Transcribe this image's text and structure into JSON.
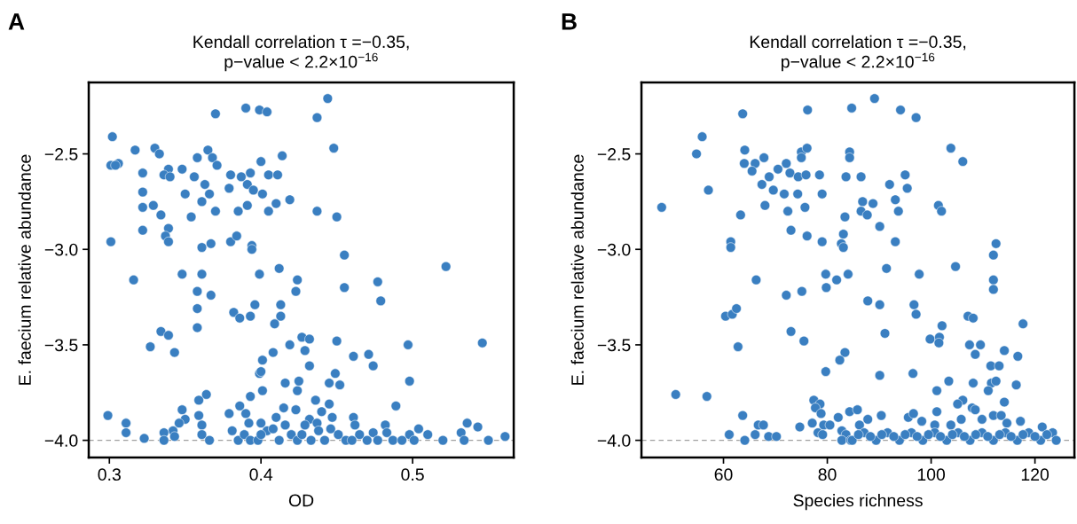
{
  "chart_data": [
    {
      "type": "scatter",
      "title": "Kendall correlation τ =−0.35,\np−value < 2.2×10$^{−16}$",
      "xlabel": "OD",
      "ylabel": "E. faecium relative abundance",
      "annotations": [
        "A"
      ],
      "marker": "circle",
      "grid": false,
      "legend": false,
      "xlim": [
        0.2864,
        0.5667
      ],
      "xticks": [
        0.3,
        0.4,
        0.5
      ],
      "ylim": [
        -4.09,
        -2.126
      ],
      "yticks": [
        {
          "value": -4.0,
          "label": "−4.0"
        },
        {
          "value": -3.5,
          "label": "−3.5"
        },
        {
          "value": -3.0,
          "label": "−3.0"
        },
        {
          "value": -2.5,
          "label": "−2.5"
        }
      ],
      "ref_lines": [
        {
          "axis": "y",
          "value": -4.0,
          "label": null,
          "color": "#a0a0a0",
          "line_style": "dashed"
        }
      ],
      "series": [
        {
          "color": "#3a7fc1",
          "x": [
            0.302,
            0.301,
            0.306,
            0.304,
            0.317,
            0.33,
            0.333,
            0.322,
            0.322,
            0.322,
            0.329,
            0.334,
            0.322,
            0.301,
            0.339,
            0.337,
            0.339,
            0.339,
            0.336,
            0.34,
            0.348,
            0.356,
            0.358,
            0.365,
            0.368,
            0.371,
            0.37,
            0.39,
            0.399,
            0.404,
            0.35,
            0.363,
            0.366,
            0.361,
            0.354,
            0.37,
            0.361,
            0.367,
            0.379,
            0.38,
            0.387,
            0.393,
            0.391,
            0.395,
            0.385,
            0.391,
            0.4,
            0.401,
            0.405,
            0.411,
            0.414,
            0.405,
            0.41,
            0.419,
            0.38,
            0.384,
            0.394,
            0.394,
            0.316,
            0.348,
            0.361,
            0.358,
            0.367,
            0.358,
            0.358,
            0.334,
            0.339,
            0.327,
            0.343,
            0.399,
            0.412,
            0.424,
            0.423,
            0.396,
            0.382,
            0.386,
            0.393,
            0.413,
            0.413,
            0.409,
            0.401,
            0.408,
            0.419,
            0.399,
            0.4,
            0.416,
            0.401,
            0.424,
            0.425,
            0.393,
            0.386,
            0.379,
            0.364,
            0.359,
            0.359,
            0.348,
            0.35,
            0.346,
            0.342,
            0.336,
            0.336,
            0.343,
            0.323,
            0.311,
            0.311,
            0.299,
            0.361,
            0.361,
            0.366,
            0.381,
            0.39,
            0.392,
            0.385,
            0.389,
            0.393,
            0.398,
            0.4,
            0.404,
            0.41,
            0.412,
            0.416,
            0.42,
            0.424,
            0.415,
            0.423,
            0.408,
            0.4,
            0.444,
            0.437,
            0.448,
            0.437,
            0.45,
            0.455,
            0.522,
            0.455,
            0.477,
            0.479,
            0.427,
            0.432,
            0.45,
            0.497,
            0.546,
            0.429,
            0.461,
            0.471,
            0.474,
            0.432,
            0.449,
            0.445,
            0.452,
            0.498,
            0.436,
            0.445,
            0.44,
            0.447,
            0.461,
            0.489,
            0.432,
            0.437,
            0.482,
            0.536,
            0.543,
            0.532,
            0.504,
            0.51,
            0.52,
            0.534,
            0.55,
            0.561,
            0.427,
            0.433,
            0.438,
            0.442,
            0.446,
            0.451,
            0.456,
            0.462,
            0.465,
            0.47,
            0.474,
            0.477,
            0.483,
            0.487,
            0.493,
            0.498,
            0.501,
            0.429,
            0.46
          ],
          "values": [
            -2.41,
            -2.56,
            -2.55,
            -2.56,
            -2.48,
            -2.47,
            -2.5,
            -2.6,
            -2.7,
            -2.78,
            -2.77,
            -2.82,
            -2.9,
            -2.96,
            -2.89,
            -2.93,
            -2.96,
            -2.58,
            -2.61,
            -2.62,
            -2.58,
            -2.62,
            -2.52,
            -2.48,
            -2.52,
            -2.56,
            -2.29,
            -2.26,
            -2.27,
            -2.28,
            -2.71,
            -2.66,
            -2.71,
            -2.75,
            -2.83,
            -2.8,
            -2.99,
            -2.97,
            -2.68,
            -2.61,
            -2.62,
            -2.6,
            -2.66,
            -2.69,
            -2.8,
            -2.77,
            -2.54,
            -2.71,
            -2.61,
            -2.61,
            -2.51,
            -2.8,
            -2.76,
            -2.74,
            -2.96,
            -2.93,
            -2.98,
            -3.0,
            -3.16,
            -3.13,
            -3.13,
            -3.22,
            -3.24,
            -3.31,
            -3.41,
            -3.43,
            -3.45,
            -3.51,
            -3.54,
            -3.13,
            -3.1,
            -3.16,
            -3.22,
            -3.29,
            -3.33,
            -3.36,
            -3.35,
            -3.29,
            -3.35,
            -3.39,
            -3.58,
            -3.54,
            -3.5,
            -3.65,
            -3.64,
            -3.7,
            -3.74,
            -3.74,
            -3.69,
            -3.77,
            -3.82,
            -3.86,
            -3.76,
            -3.79,
            -3.87,
            -3.84,
            -3.89,
            -3.91,
            -3.95,
            -3.96,
            -4.0,
            -3.98,
            -3.99,
            -3.91,
            -3.96,
            -3.87,
            -3.92,
            -3.97,
            -4.0,
            -3.95,
            -3.86,
            -3.91,
            -4.0,
            -3.97,
            -4.0,
            -4.0,
            -3.91,
            -3.95,
            -3.88,
            -4.0,
            -3.92,
            -3.97,
            -4.0,
            -3.83,
            -3.84,
            -3.94,
            -3.97,
            -2.21,
            -2.31,
            -2.47,
            -2.8,
            -2.83,
            -3.03,
            -3.09,
            -3.2,
            -3.17,
            -3.27,
            -3.46,
            -3.47,
            -3.48,
            -3.5,
            -3.49,
            -3.53,
            -3.56,
            -3.55,
            -3.61,
            -3.61,
            -3.65,
            -3.7,
            -3.71,
            -3.69,
            -3.79,
            -3.81,
            -3.85,
            -3.88,
            -3.88,
            -3.82,
            -3.89,
            -3.91,
            -3.92,
            -3.91,
            -3.93,
            -3.96,
            -3.94,
            -3.97,
            -4.0,
            -4.0,
            -4.0,
            -3.98,
            -3.97,
            -4.0,
            -3.95,
            -4.0,
            -3.94,
            -3.97,
            -4.0,
            -3.92,
            -3.97,
            -4.0,
            -3.96,
            -4.0,
            -3.96,
            -4.0,
            -4.0,
            -3.97,
            -4.0,
            -3.92,
            -4.0
          ]
        }
      ]
    },
    {
      "type": "scatter",
      "title": "Kendall correlation τ =−0.35,\np−value < 2.2×10$^{−16}$",
      "xlabel": "Species richness",
      "ylabel": "E. faecium relative abundance",
      "annotations": [
        "B"
      ],
      "marker": "circle",
      "grid": false,
      "legend": false,
      "xlim": [
        44.2,
        127.6
      ],
      "xticks": [
        60,
        80,
        100,
        120
      ],
      "ylim": [
        -4.09,
        -2.126
      ],
      "yticks": [
        {
          "value": -4.0,
          "label": "−4.0"
        },
        {
          "value": -3.5,
          "label": "−3.5"
        },
        {
          "value": -3.0,
          "label": "−3.0"
        },
        {
          "value": -2.5,
          "label": "−2.5"
        }
      ],
      "ref_lines": [
        {
          "axis": "y",
          "value": -4.0,
          "label": null,
          "color": "#a0a0a0",
          "line_style": "dashed"
        }
      ],
      "series": [
        {
          "color": "#3a7fc1",
          "x": [
            48.1,
            55.9,
            54.8,
            57.1,
            50.8,
            56.8,
            63.7,
            64.1,
            64.0,
            66.1,
            65.5,
            67.8,
            68.8,
            67.4,
            69.6,
            70.5,
            72.1,
            72.8,
            74.4,
            75.9,
            75.0,
            76.1,
            75.0,
            76.2,
            71.7,
            74.3,
            68.0,
            63.3,
            72.4,
            75.7,
            73.0,
            76.1,
            78.5,
            79.0,
            79.0,
            61.4,
            61.4,
            83.4,
            83.1,
            82.7,
            83.1,
            83.6,
            84.7,
            84.3,
            84.3,
            66.3,
            72.1,
            75.1,
            79.7,
            81.8,
            79.8,
            84.0,
            60.4,
            61.7,
            62.5,
            62.8,
            73.0,
            75.5,
            83.4,
            82.4,
            79.7,
            77.4,
            78.6,
            77.7,
            78.8,
            82.1,
            84.3,
            63.7,
            61.1,
            64.1,
            66.1,
            66.7,
            67.7,
            68.7,
            70.2,
            74.7,
            77.1,
            78.2,
            79.3,
            80.5,
            79.1,
            82.8,
            83.6,
            82.8,
            84.5,
            89.1,
            94.1,
            97.1,
            103.8,
            106.1,
            86.5,
            92.0,
            95.0,
            95.4,
            86.8,
            88.8,
            86.5,
            87.7,
            93.1,
            93.7,
            101.4,
            102.0,
            90.1,
            93.1,
            112.5,
            112.0,
            91.4,
            97.7,
            104.7,
            112.0,
            112.0,
            87.8,
            90.1,
            96.7,
            97.1,
            107.1,
            108.1,
            117.7,
            102.1,
            91.1,
            99.8,
            101.6,
            101.5,
            107.4,
            109.5,
            108.5,
            114.1,
            116.7,
            111.5,
            113.1,
            90.1,
            96.5,
            103.4,
            108.1,
            111.6,
            112.5,
            111.0,
            116.4,
            101.1,
            106.1,
            105.1,
            107.9,
            108.5,
            114.1,
            101.1,
            85.8,
            90.4,
            95.6,
            96.6,
            98.2,
            112.0,
            113.5,
            114.6,
            117.2,
            121.4,
            109.8,
            105.8,
            103.8,
            100.7,
            87.8,
            86.2,
            84.8,
            87.1,
            89.4,
            91.6,
            93.9,
            96.2,
            98.4,
            100.7,
            103.0,
            105.2,
            107.5,
            109.8,
            112.0,
            114.3,
            116.6,
            118.8,
            121.1,
            123.4,
            124.1,
            86.0,
            88.3,
            90.5,
            92.8,
            95.0,
            97.3,
            99.5,
            101.8,
            104.1,
            106.4,
            108.6,
            110.9,
            113.2,
            115.4,
            117.7,
            120.0,
            122.3
          ],
          "values": [
            -2.78,
            -2.41,
            -2.5,
            -2.69,
            -3.76,
            -3.77,
            -2.29,
            -2.48,
            -2.55,
            -2.55,
            -2.59,
            -2.52,
            -2.62,
            -2.66,
            -2.69,
            -2.58,
            -2.55,
            -2.6,
            -2.62,
            -2.61,
            -2.49,
            -2.47,
            -2.52,
            -2.27,
            -2.71,
            -2.71,
            -2.77,
            -2.82,
            -2.8,
            -2.78,
            -2.9,
            -2.93,
            -2.61,
            -2.71,
            -2.96,
            -2.96,
            -2.99,
            -2.83,
            -2.92,
            -2.97,
            -2.99,
            -2.62,
            -2.26,
            -2.49,
            -2.52,
            -3.16,
            -3.24,
            -3.22,
            -3.13,
            -3.16,
            -3.2,
            -3.13,
            -3.35,
            -3.34,
            -3.31,
            -3.51,
            -3.43,
            -3.48,
            -3.54,
            -3.58,
            -3.64,
            -3.79,
            -3.81,
            -3.83,
            -3.86,
            -3.88,
            -3.85,
            -3.87,
            -3.97,
            -4.0,
            -3.97,
            -3.92,
            -3.92,
            -3.98,
            -3.98,
            -3.93,
            -3.91,
            -3.96,
            -3.92,
            -3.92,
            -3.97,
            -3.95,
            -3.97,
            -4.0,
            -4.0,
            -2.21,
            -2.27,
            -2.31,
            -2.47,
            -2.54,
            -2.62,
            -2.66,
            -2.61,
            -2.68,
            -2.75,
            -2.76,
            -2.8,
            -2.82,
            -2.74,
            -2.8,
            -2.77,
            -2.8,
            -2.88,
            -2.96,
            -2.97,
            -3.03,
            -3.1,
            -3.13,
            -3.09,
            -3.16,
            -3.21,
            -3.27,
            -3.29,
            -3.29,
            -3.34,
            -3.35,
            -3.36,
            -3.39,
            -3.4,
            -3.44,
            -3.47,
            -3.46,
            -3.49,
            -3.5,
            -3.5,
            -3.55,
            -3.53,
            -3.56,
            -3.61,
            -3.61,
            -3.66,
            -3.65,
            -3.69,
            -3.7,
            -3.7,
            -3.69,
            -3.74,
            -3.71,
            -3.74,
            -3.79,
            -3.81,
            -3.83,
            -3.84,
            -3.8,
            -3.85,
            -3.84,
            -3.87,
            -3.88,
            -3.86,
            -3.9,
            -3.87,
            -3.87,
            -3.91,
            -3.9,
            -3.93,
            -3.89,
            -3.89,
            -3.92,
            -3.92,
            -3.89,
            -3.92,
            -4.0,
            -3.96,
            -4.0,
            -3.96,
            -4.0,
            -3.96,
            -4.0,
            -3.96,
            -4.0,
            -3.96,
            -4.0,
            -3.96,
            -4.0,
            -3.96,
            -4.0,
            -3.96,
            -4.0,
            -3.96,
            -4.0,
            -3.97,
            -3.98,
            -3.97,
            -3.98,
            -3.97,
            -3.98,
            -3.97,
            -3.98,
            -3.97,
            -3.98,
            -3.97,
            -3.98,
            -3.97,
            -3.98,
            -3.97,
            -3.98,
            -3.97
          ]
        }
      ]
    }
  ]
}
